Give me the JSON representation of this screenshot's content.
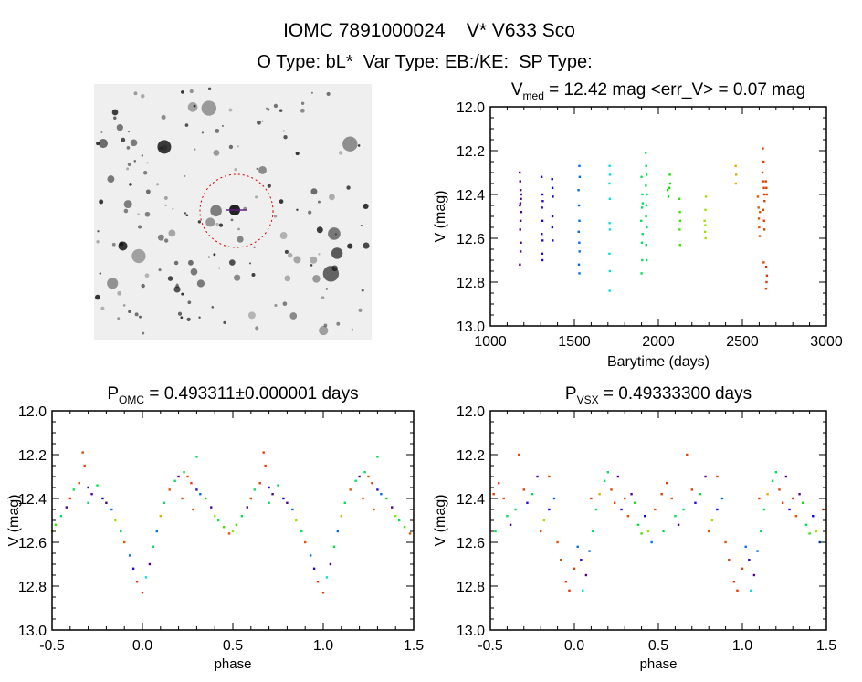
{
  "header": {
    "title": "IOMC 7891000024    V* V633 Sco",
    "subtitle": "O Type: bL*  Var Type: EB:/KE:  SP Type:"
  },
  "chart_data": [
    {
      "type": "scatter",
      "title_main": "V",
      "title_sub": "med",
      "title_rest": " = 12.42 mag <err_V> = 0.07 mag",
      "xlabel": "Barytime (days)",
      "ylabel": "V (mag)",
      "xlim": [
        1000,
        3000
      ],
      "ylim": [
        12.0,
        13.0
      ],
      "y_inverted": true,
      "xticks": [
        "1000",
        "1500",
        "2000",
        "2500",
        "3000"
      ],
      "yticks": [
        "12.0",
        "12.2",
        "12.4",
        "12.6",
        "12.8",
        "13.0"
      ],
      "color_by": "time (rainbow)",
      "points": [
        [
          1175,
          12.3
        ],
        [
          1178,
          12.34
        ],
        [
          1180,
          12.38
        ],
        [
          1182,
          12.42
        ],
        [
          1176,
          12.45
        ],
        [
          1184,
          12.48
        ],
        [
          1180,
          12.52
        ],
        [
          1178,
          12.56
        ],
        [
          1182,
          12.62
        ],
        [
          1180,
          12.66
        ],
        [
          1176,
          12.72
        ],
        [
          1183,
          12.4
        ],
        [
          1179,
          12.44
        ],
        [
          1305,
          12.32
        ],
        [
          1310,
          12.4
        ],
        [
          1312,
          12.43
        ],
        [
          1308,
          12.46
        ],
        [
          1310,
          12.52
        ],
        [
          1306,
          12.58
        ],
        [
          1311,
          12.61
        ],
        [
          1309,
          12.67
        ],
        [
          1310,
          12.7
        ],
        [
          1368,
          12.33
        ],
        [
          1370,
          12.37
        ],
        [
          1372,
          12.41
        ],
        [
          1370,
          12.5
        ],
        [
          1369,
          12.55
        ],
        [
          1371,
          12.61
        ],
        [
          1525,
          12.38
        ],
        [
          1530,
          12.27
        ],
        [
          1532,
          12.32
        ],
        [
          1528,
          12.45
        ],
        [
          1530,
          12.52
        ],
        [
          1526,
          12.57
        ],
        [
          1529,
          12.62
        ],
        [
          1531,
          12.66
        ],
        [
          1527,
          12.72
        ],
        [
          1530,
          12.76
        ],
        [
          1710,
          12.27
        ],
        [
          1712,
          12.31
        ],
        [
          1709,
          12.35
        ],
        [
          1711,
          12.42
        ],
        [
          1710,
          12.53
        ],
        [
          1712,
          12.56
        ],
        [
          1709,
          12.67
        ],
        [
          1711,
          12.75
        ],
        [
          1710,
          12.84
        ],
        [
          1900,
          12.32
        ],
        [
          1905,
          12.4
        ],
        [
          1903,
          12.46
        ],
        [
          1898,
          12.52
        ],
        [
          1906,
          12.58
        ],
        [
          1902,
          12.62
        ],
        [
          1904,
          12.7
        ],
        [
          1900,
          12.76
        ],
        [
          1907,
          12.44
        ],
        [
          1925,
          12.21
        ],
        [
          1928,
          12.27
        ],
        [
          1930,
          12.31
        ],
        [
          1926,
          12.36
        ],
        [
          1932,
          12.4
        ],
        [
          1929,
          12.45
        ],
        [
          1927,
          12.5
        ],
        [
          1931,
          12.55
        ],
        [
          1928,
          12.63
        ],
        [
          1930,
          12.7
        ],
        [
          2055,
          12.38
        ],
        [
          2060,
          12.41
        ],
        [
          2068,
          12.31
        ],
        [
          2070,
          12.35
        ],
        [
          2066,
          12.37
        ],
        [
          2125,
          12.42
        ],
        [
          2128,
          12.48
        ],
        [
          2130,
          12.52
        ],
        [
          2127,
          12.56
        ],
        [
          2129,
          12.63
        ],
        [
          2275,
          12.52
        ],
        [
          2280,
          12.47
        ],
        [
          2283,
          12.41
        ],
        [
          2278,
          12.57
        ],
        [
          2281,
          12.6
        ],
        [
          2279,
          12.54
        ],
        [
          2460,
          12.27
        ],
        [
          2463,
          12.31
        ],
        [
          2461,
          12.35
        ],
        [
          2592,
          12.41
        ],
        [
          2596,
          12.46
        ],
        [
          2598,
          12.51
        ],
        [
          2600,
          12.55
        ],
        [
          2603,
          12.59
        ],
        [
          2605,
          12.48
        ],
        [
          2620,
          12.3
        ],
        [
          2625,
          12.34
        ],
        [
          2628,
          12.37
        ],
        [
          2630,
          12.4
        ],
        [
          2622,
          12.19
        ],
        [
          2626,
          12.25
        ],
        [
          2632,
          12.43
        ],
        [
          2624,
          12.47
        ],
        [
          2629,
          12.52
        ],
        [
          2631,
          12.56
        ],
        [
          2627,
          12.71
        ],
        [
          2640,
          12.34
        ],
        [
          2643,
          12.37
        ],
        [
          2645,
          12.4
        ],
        [
          2642,
          12.73
        ],
        [
          2646,
          12.77
        ],
        [
          2644,
          12.8
        ],
        [
          2641,
          12.83
        ]
      ]
    },
    {
      "type": "scatter",
      "title_main": "P",
      "title_sub": "OMC",
      "title_rest": " = 0.493311±0.000001 days",
      "xlabel": "phase",
      "ylabel": "V (mag)",
      "xlim": [
        -0.5,
        1.5
      ],
      "ylim": [
        12.0,
        13.0
      ],
      "y_inverted": true,
      "xticks": [
        "-0.5",
        "0.0",
        "0.5",
        "1.0",
        "1.5"
      ],
      "yticks": [
        "12.0",
        "12.2",
        "12.4",
        "12.6",
        "12.8",
        "13.0"
      ],
      "color_by": "time (rainbow)",
      "repeat_phase": true,
      "points": [
        [
          -0.48,
          12.52,
          2130
        ],
        [
          -0.45,
          12.48,
          1930
        ],
        [
          -0.42,
          12.44,
          1180
        ],
        [
          -0.4,
          12.4,
          2630
        ],
        [
          -0.38,
          12.36,
          1910
        ],
        [
          -0.35,
          12.33,
          2630
        ],
        [
          -0.32,
          12.25,
          2630
        ],
        [
          -0.33,
          12.19,
          2630
        ],
        [
          -0.3,
          12.35,
          1310
        ],
        [
          -0.3,
          12.42,
          1910
        ],
        [
          -0.28,
          12.38,
          1180
        ],
        [
          -0.25,
          12.34,
          1930
        ],
        [
          -0.22,
          12.4,
          1370
        ],
        [
          -0.2,
          12.42,
          1180
        ],
        [
          -0.17,
          12.45,
          1530
        ],
        [
          -0.15,
          12.5,
          2280
        ],
        [
          -0.12,
          12.55,
          1930
        ],
        [
          -0.1,
          12.6,
          2600
        ],
        [
          -0.07,
          12.66,
          1530
        ],
        [
          -0.05,
          12.72,
          1310
        ],
        [
          -0.03,
          12.78,
          2645
        ],
        [
          0.0,
          12.83,
          2645
        ],
        [
          0.02,
          12.76,
          1710
        ],
        [
          0.04,
          12.7,
          1180
        ],
        [
          0.06,
          12.62,
          1910
        ],
        [
          0.08,
          12.55,
          1530
        ],
        [
          0.1,
          12.48,
          2460
        ],
        [
          0.12,
          12.42,
          1930
        ],
        [
          0.15,
          12.36,
          2600
        ],
        [
          0.18,
          12.32,
          1910
        ],
        [
          0.2,
          12.3,
          1180
        ],
        [
          0.22,
          12.4,
          2600
        ],
        [
          0.23,
          12.28,
          1930
        ],
        [
          0.25,
          12.3,
          2600
        ],
        [
          0.27,
          12.33,
          2630
        ],
        [
          0.28,
          12.45,
          2600
        ],
        [
          0.3,
          12.36,
          1310
        ],
        [
          0.3,
          12.21,
          1930
        ],
        [
          0.32,
          12.38,
          1530
        ],
        [
          0.35,
          12.4,
          2060
        ],
        [
          0.38,
          12.44,
          1180
        ],
        [
          0.4,
          12.48,
          2280
        ],
        [
          0.42,
          12.5,
          1930
        ],
        [
          0.45,
          12.53,
          2130
        ],
        [
          0.48,
          12.56,
          2600
        ],
        [
          -0.5,
          12.55,
          2280
        ]
      ]
    },
    {
      "type": "scatter",
      "title_main": "P",
      "title_sub": "VSX",
      "title_rest": " = 0.49333300 days",
      "xlabel": "phase",
      "ylabel": "V (mag)",
      "xlim": [
        -0.5,
        1.5
      ],
      "ylim": [
        12.0,
        13.0
      ],
      "y_inverted": true,
      "xticks": [
        "-0.5",
        "0.0",
        "0.5",
        "1.0",
        "1.5"
      ],
      "yticks": [
        "12.0",
        "12.2",
        "12.4",
        "12.6",
        "12.8",
        "13.0"
      ],
      "color_by": "time (rainbow)",
      "repeat_phase": true,
      "points": [
        [
          -0.48,
          12.38,
          2630
        ],
        [
          -0.45,
          12.33,
          2630
        ],
        [
          -0.42,
          12.4,
          2600
        ],
        [
          -0.4,
          12.48,
          1930
        ],
        [
          -0.38,
          12.52,
          1180
        ],
        [
          -0.35,
          12.45,
          1910
        ],
        [
          -0.33,
          12.2,
          2630
        ],
        [
          -0.3,
          12.36,
          2630
        ],
        [
          -0.28,
          12.42,
          1310
        ],
        [
          -0.25,
          12.38,
          1930
        ],
        [
          -0.22,
          12.3,
          1180
        ],
        [
          -0.2,
          12.55,
          2600
        ],
        [
          -0.18,
          12.5,
          2280
        ],
        [
          -0.15,
          12.45,
          1370
        ],
        [
          -0.12,
          12.4,
          1530
        ],
        [
          -0.1,
          12.6,
          2600
        ],
        [
          -0.08,
          12.68,
          2630
        ],
        [
          -0.05,
          12.78,
          2645
        ],
        [
          -0.03,
          12.82,
          2645
        ],
        [
          0.0,
          12.72,
          2630
        ],
        [
          0.02,
          12.62,
          1530
        ],
        [
          0.04,
          12.68,
          1310
        ],
        [
          0.05,
          12.82,
          1710
        ],
        [
          0.07,
          12.75,
          1180
        ],
        [
          0.09,
          12.64,
          1530
        ],
        [
          0.11,
          12.55,
          1910
        ],
        [
          0.13,
          12.45,
          1930
        ],
        [
          0.15,
          12.38,
          2460
        ],
        [
          0.18,
          12.32,
          1930
        ],
        [
          0.2,
          12.28,
          1910
        ],
        [
          0.22,
          12.36,
          2630
        ],
        [
          0.24,
          12.42,
          2630
        ],
        [
          0.26,
          12.3,
          1180
        ],
        [
          0.28,
          12.45,
          1310
        ],
        [
          0.3,
          12.4,
          2630
        ],
        [
          0.32,
          12.48,
          2600
        ],
        [
          0.34,
          12.38,
          1180
        ],
        [
          0.36,
          12.42,
          2060
        ],
        [
          0.38,
          12.52,
          1930
        ],
        [
          0.4,
          12.56,
          2130
        ],
        [
          0.42,
          12.48,
          1370
        ],
        [
          0.44,
          12.55,
          2280
        ],
        [
          0.46,
          12.6,
          1530
        ],
        [
          0.48,
          12.45,
          2600
        ],
        [
          -0.47,
          12.55,
          1930
        ],
        [
          0.1,
          12.4,
          2630
        ],
        [
          -0.15,
          12.3,
          2630
        ]
      ]
    }
  ]
}
